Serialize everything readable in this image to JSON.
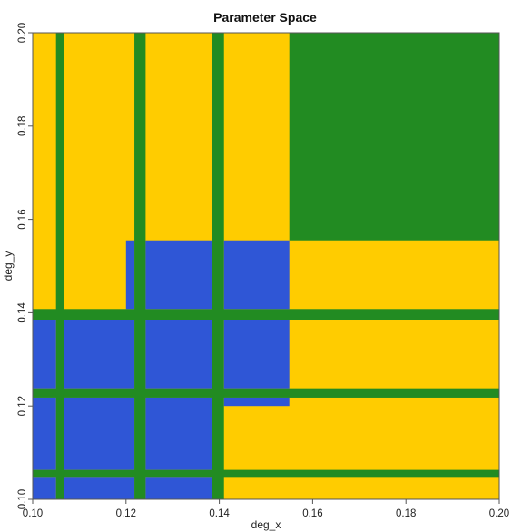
{
  "chart_data": {
    "type": "heatmap",
    "title": "Parameter Space",
    "xlabel": "deg_x",
    "ylabel": "deg_y",
    "xlim": [
      0.1,
      0.2
    ],
    "ylim": [
      0.1,
      0.2
    ],
    "xticks": [
      "0.10",
      "0.12",
      "0.14",
      "0.16",
      "0.18",
      "0.20"
    ],
    "yticks": [
      "0.10",
      "0.12",
      "0.14",
      "0.16",
      "0.18",
      "0.20"
    ],
    "grid": false,
    "legend": "none",
    "colors": {
      "green": "#228b22",
      "yellow": "#ffcc00",
      "blue": "#2f56d6"
    },
    "regions": [
      {
        "class": "yellow",
        "x": [
          0.1,
          0.2
        ],
        "y": [
          0.1,
          0.2
        ]
      },
      {
        "class": "green",
        "x": [
          0.155,
          0.2
        ],
        "y": [
          0.1555,
          0.2
        ]
      },
      {
        "class": "green",
        "x": [
          0.105,
          0.1068
        ],
        "y": [
          0.1,
          0.2
        ]
      },
      {
        "class": "green",
        "x": [
          0.1218,
          0.1242
        ],
        "y": [
          0.1,
          0.2
        ]
      },
      {
        "class": "green",
        "x": [
          0.1385,
          0.141
        ],
        "y": [
          0.1,
          0.2
        ]
      },
      {
        "class": "green",
        "x": [
          0.1,
          0.2
        ],
        "y": [
          0.1048,
          0.1063
        ]
      },
      {
        "class": "green",
        "x": [
          0.1,
          0.2
        ],
        "y": [
          0.1218,
          0.1238
        ]
      },
      {
        "class": "green",
        "x": [
          0.1,
          0.2
        ],
        "y": [
          0.1385,
          0.1408
        ]
      },
      {
        "class": "blue",
        "x": [
          0.1,
          0.105
        ],
        "y": [
          0.1,
          0.1048
        ]
      },
      {
        "class": "blue",
        "x": [
          0.1068,
          0.1218
        ],
        "y": [
          0.1,
          0.1048
        ]
      },
      {
        "class": "blue",
        "x": [
          0.1242,
          0.1385
        ],
        "y": [
          0.1,
          0.1048
        ]
      },
      {
        "class": "blue",
        "x": [
          0.1,
          0.105
        ],
        "y": [
          0.1063,
          0.1218
        ]
      },
      {
        "class": "blue",
        "x": [
          0.1068,
          0.1218
        ],
        "y": [
          0.1063,
          0.1218
        ]
      },
      {
        "class": "blue",
        "x": [
          0.1242,
          0.1385
        ],
        "y": [
          0.1063,
          0.1218
        ]
      },
      {
        "class": "blue",
        "x": [
          0.141,
          0.155
        ],
        "y": [
          0.12,
          0.1218
        ]
      },
      {
        "class": "blue",
        "x": [
          0.1,
          0.105
        ],
        "y": [
          0.1238,
          0.1385
        ]
      },
      {
        "class": "blue",
        "x": [
          0.1068,
          0.1218
        ],
        "y": [
          0.1238,
          0.1385
        ]
      },
      {
        "class": "blue",
        "x": [
          0.1242,
          0.1385
        ],
        "y": [
          0.1238,
          0.1385
        ]
      },
      {
        "class": "blue",
        "x": [
          0.141,
          0.155
        ],
        "y": [
          0.1238,
          0.1385
        ]
      },
      {
        "class": "blue",
        "x": [
          0.12,
          0.1218
        ],
        "y": [
          0.1408,
          0.1555
        ]
      },
      {
        "class": "blue",
        "x": [
          0.1242,
          0.1385
        ],
        "y": [
          0.1408,
          0.1555
        ]
      },
      {
        "class": "blue",
        "x": [
          0.141,
          0.155
        ],
        "y": [
          0.1408,
          0.1555
        ]
      }
    ]
  }
}
